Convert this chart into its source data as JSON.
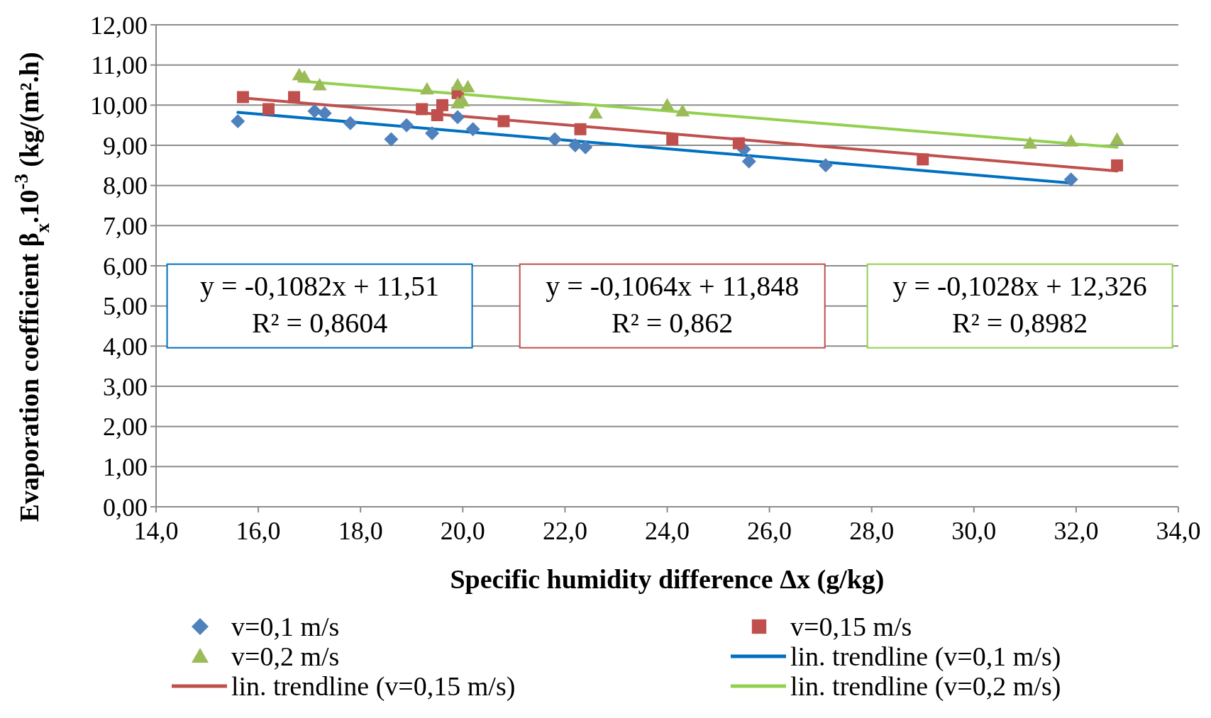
{
  "chart_data": {
    "type": "scatter",
    "xlabel": "Specific humidity difference Δx (g/kg)",
    "ylabel": "Evaporation coefficient β$_{x}$.10$^{-3}$ (kg/(m².h)",
    "xlim": [
      14,
      34
    ],
    "xticks": [
      {
        "value": 14,
        "label": "14,0"
      },
      {
        "value": 16,
        "label": "16,0"
      },
      {
        "value": 18,
        "label": "18,0"
      },
      {
        "value": 20,
        "label": "20,0"
      },
      {
        "value": 22,
        "label": "22,0"
      },
      {
        "value": 24,
        "label": "24,0"
      },
      {
        "value": 26,
        "label": "26,0"
      },
      {
        "value": 28,
        "label": "28,0"
      },
      {
        "value": 30,
        "label": "30,0"
      },
      {
        "value": 32,
        "label": "32,0"
      },
      {
        "value": 34,
        "label": "34,0"
      }
    ],
    "ylim": [
      0,
      12
    ],
    "yticks": [
      {
        "value": 0,
        "label": "0,00"
      },
      {
        "value": 1,
        "label": "1,00"
      },
      {
        "value": 2,
        "label": "2,00"
      },
      {
        "value": 3,
        "label": "3,00"
      },
      {
        "value": 4,
        "label": "4,00"
      },
      {
        "value": 5,
        "label": "5,00"
      },
      {
        "value": 6,
        "label": "6,00"
      },
      {
        "value": 7,
        "label": "7,00"
      },
      {
        "value": 8,
        "label": "8,00"
      },
      {
        "value": 9,
        "label": "9,00"
      },
      {
        "value": 10,
        "label": "10,00"
      },
      {
        "value": 11,
        "label": "11,00"
      },
      {
        "value": 12,
        "label": "12,00"
      }
    ],
    "grid": "y",
    "legend": "bottom",
    "series": [
      {
        "name": "v=0,1 m/s",
        "type": "scatter",
        "marker": "diamond",
        "color": "#4f81bd",
        "x": [
          15.6,
          17.1,
          17.3,
          17.8,
          18.6,
          18.9,
          19.4,
          19.9,
          20.2,
          21.8,
          22.2,
          22.4,
          25.5,
          25.6,
          27.1,
          31.9
        ],
        "values": [
          9.6,
          9.85,
          9.8,
          9.55,
          9.15,
          9.5,
          9.3,
          9.7,
          9.4,
          9.15,
          9.0,
          8.95,
          8.9,
          8.6,
          8.5,
          8.15
        ]
      },
      {
        "name": "v=0,15 m/s",
        "type": "scatter",
        "marker": "square",
        "color": "#c0504d",
        "x": [
          15.7,
          16.2,
          16.7,
          19.2,
          19.5,
          19.6,
          19.9,
          20.8,
          22.3,
          24.1,
          25.4,
          29.0,
          32.8
        ],
        "values": [
          10.2,
          9.9,
          10.2,
          9.9,
          9.75,
          10.0,
          10.3,
          9.6,
          9.4,
          9.15,
          9.05,
          8.65,
          8.5
        ]
      },
      {
        "name": "v=0,2 m/s",
        "type": "scatter",
        "marker": "triangle",
        "color": "#9bbb59",
        "x": [
          16.8,
          16.9,
          17.2,
          19.3,
          19.9,
          19.9,
          20.0,
          20.1,
          22.6,
          24.0,
          24.3,
          31.1,
          31.9,
          32.8
        ],
        "values": [
          10.75,
          10.7,
          10.5,
          10.4,
          10.5,
          10.05,
          10.1,
          10.45,
          9.8,
          10.0,
          9.85,
          9.05,
          9.1,
          9.15
        ]
      },
      {
        "name": "lin. trendline (v=0,1 m/s)",
        "type": "line",
        "color": "#0070c0",
        "x": [
          15.6,
          31.9
        ],
        "values": [
          9.82,
          8.06
        ]
      },
      {
        "name": "lin. trendline (v=0,15 m/s)",
        "type": "line",
        "color": "#c0504d",
        "x": [
          15.7,
          32.8
        ],
        "values": [
          10.18,
          8.36
        ]
      },
      {
        "name": "lin. trendline (v=0,2 m/s)",
        "type": "line",
        "color": "#92d050",
        "x": [
          16.8,
          32.8
        ],
        "values": [
          10.6,
          8.95
        ]
      }
    ],
    "annotations": [
      "y = -0,1082x + 11,51\nR² = 0,8604",
      "y = -0,1064x + 11,848\nR² = 0,862",
      "y = -0,1028x + 12,326\nR² = 0,8982"
    ]
  }
}
